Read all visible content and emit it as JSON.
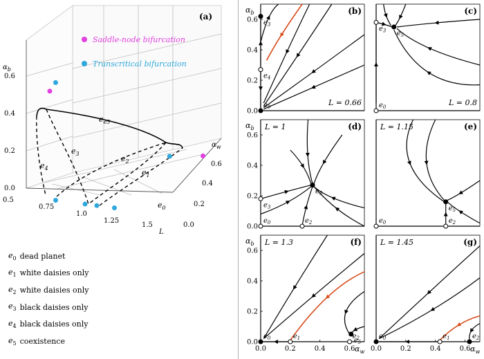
{
  "colors": {
    "saddle_node": "#e040e0",
    "transcritical": "#2ea8dc",
    "red_trajectory": "#d94b1a",
    "curve": "#000000",
    "grid": "#cfcfcf"
  },
  "legend_items": [
    {
      "symbol": "e",
      "index": "0",
      "text": "dead planet"
    },
    {
      "symbol": "e",
      "index": "1",
      "text": "white daisies only"
    },
    {
      "symbol": "e",
      "index": "2",
      "text": "white daisies only"
    },
    {
      "symbol": "e",
      "index": "3",
      "text": "black daisies only"
    },
    {
      "symbol": "e",
      "index": "4",
      "text": "black daisies only"
    },
    {
      "symbol": "e",
      "index": "5",
      "text": "coexistence"
    }
  ],
  "chart_data": [
    {
      "id": "a",
      "type": "3d-bifurcation",
      "panel_label": "(a)",
      "x_axis": {
        "label": "L",
        "ticks": [
          "0.5",
          "0.75",
          "1.0",
          "1.25",
          "1.5"
        ]
      },
      "y_axis": {
        "label": "αw",
        "ticks": [
          "0.0",
          "0.2",
          "0.4",
          "0.6"
        ]
      },
      "z_axis": {
        "label": "αb",
        "ticks": [
          "0.0",
          "0.2",
          "0.4",
          "0.6"
        ]
      },
      "legend": [
        {
          "label": "Saddle-node bifurcation",
          "color": "#e040e0"
        },
        {
          "label": "Transcritical bifurcation",
          "color": "#2ea8dc"
        }
      ],
      "branch_labels": [
        "e0",
        "e1",
        "e2",
        "e3",
        "e4",
        "e5"
      ],
      "saddle_node_points": [
        {
          "L": 0.7,
          "aw": 0.0,
          "ab": 0.58
        },
        {
          "L": 1.55,
          "aw": 0.67,
          "ab": 0.0
        }
      ],
      "transcritical_points": [
        {
          "L": 0.75,
          "aw": 0.0,
          "ab": 0.63
        },
        {
          "L": 1.3,
          "aw": 0.62,
          "ab": 0.0
        },
        {
          "L": 0.75,
          "aw": 0.0,
          "ab": 0.0
        },
        {
          "L": 1.0,
          "aw": 0.0,
          "ab": 0.0
        },
        {
          "L": 1.1,
          "aw": 0.0,
          "ab": 0.0
        },
        {
          "L": 1.25,
          "aw": 0.0,
          "ab": 0.0
        }
      ]
    },
    {
      "id": "b",
      "type": "phase-portrait",
      "panel_label": "(b)",
      "L_text": "L = 0.66",
      "xlim": [
        0,
        0.7
      ],
      "ylim": [
        0,
        0.7
      ],
      "xticks": [],
      "yticks": [
        "0.0",
        "0.2",
        "0.4",
        "0.6"
      ],
      "xlabel": "",
      "ylabel": "αb",
      "points": [
        {
          "name": "e3",
          "aw": 0.0,
          "ab": 0.62,
          "stable": true
        },
        {
          "name": "e4",
          "aw": 0.0,
          "ab": 0.27,
          "stable": false
        },
        {
          "name": "e0",
          "aw": 0.0,
          "ab": 0.0,
          "stable": true
        }
      ]
    },
    {
      "id": "c",
      "type": "phase-portrait",
      "panel_label": "(c)",
      "L_text": "L = 0.8",
      "xlim": [
        0,
        0.7
      ],
      "ylim": [
        0,
        0.7
      ],
      "xticks": [],
      "yticks": [],
      "xlabel": "",
      "ylabel": "",
      "points": [
        {
          "name": "e3",
          "aw": 0.0,
          "ab": 0.58,
          "stable": false
        },
        {
          "name": "e5",
          "aw": 0.12,
          "ab": 0.55,
          "stable": true
        },
        {
          "name": "e0",
          "aw": 0.0,
          "ab": 0.0,
          "stable": false
        }
      ]
    },
    {
      "id": "d",
      "type": "phase-portrait",
      "panel_label": "(d)",
      "L_text": "L = 1",
      "xlim": [
        0,
        0.7
      ],
      "ylim": [
        0,
        0.7
      ],
      "xticks": [],
      "yticks": [
        "0.0",
        "0.2",
        "0.4",
        "0.6"
      ],
      "xlabel": "",
      "ylabel": "αb",
      "points": [
        {
          "name": "e5",
          "aw": 0.35,
          "ab": 0.27,
          "stable": true
        },
        {
          "name": "e3",
          "aw": 0.0,
          "ab": 0.18,
          "stable": false
        },
        {
          "name": "e0",
          "aw": 0.0,
          "ab": 0.0,
          "stable": false
        },
        {
          "name": "e2",
          "aw": 0.28,
          "ab": 0.0,
          "stable": false
        }
      ]
    },
    {
      "id": "e",
      "type": "phase-portrait",
      "panel_label": "(e)",
      "L_text": "L = 1.15",
      "xlim": [
        0,
        0.7
      ],
      "ylim": [
        0,
        0.7
      ],
      "xticks": [],
      "yticks": [],
      "xlabel": "",
      "ylabel": "",
      "points": [
        {
          "name": "e5",
          "aw": 0.47,
          "ab": 0.16,
          "stable": true
        },
        {
          "name": "e0",
          "aw": 0.0,
          "ab": 0.0,
          "stable": false
        },
        {
          "name": "e2",
          "aw": 0.47,
          "ab": 0.0,
          "stable": false
        }
      ]
    },
    {
      "id": "f",
      "type": "phase-portrait",
      "panel_label": "(f)",
      "L_text": "L = 1.3",
      "xlim": [
        0,
        0.7
      ],
      "ylim": [
        0,
        0.7
      ],
      "xticks": [
        "0.0",
        "0.2",
        "0.4",
        "0.6"
      ],
      "yticks": [
        "0.0",
        "0.2",
        "0.4",
        "0.6"
      ],
      "xlabel": "αw",
      "ylabel": "αb",
      "points": [
        {
          "name": "e0",
          "aw": 0.0,
          "ab": 0.0,
          "stable": true
        },
        {
          "name": "e1",
          "aw": 0.2,
          "ab": 0.0,
          "stable": false
        },
        {
          "name": "e2",
          "aw": 0.6,
          "ab": 0.0,
          "stable": false
        },
        {
          "name": "e5",
          "aw": 0.61,
          "ab": 0.05,
          "stable": true
        }
      ]
    },
    {
      "id": "g",
      "type": "phase-portrait",
      "panel_label": "(g)",
      "L_text": "L = 1.45",
      "xlim": [
        0,
        0.7
      ],
      "ylim": [
        0,
        0.7
      ],
      "xticks": [
        "0.0",
        "0.2",
        "0.4",
        "0.6"
      ],
      "yticks": [],
      "xlabel": "αw",
      "ylabel": "",
      "points": [
        {
          "name": "e0",
          "aw": 0.0,
          "ab": 0.0,
          "stable": true
        },
        {
          "name": "e1",
          "aw": 0.43,
          "ab": 0.0,
          "stable": false
        },
        {
          "name": "e2",
          "aw": 0.63,
          "ab": 0.0,
          "stable": true
        }
      ]
    }
  ]
}
